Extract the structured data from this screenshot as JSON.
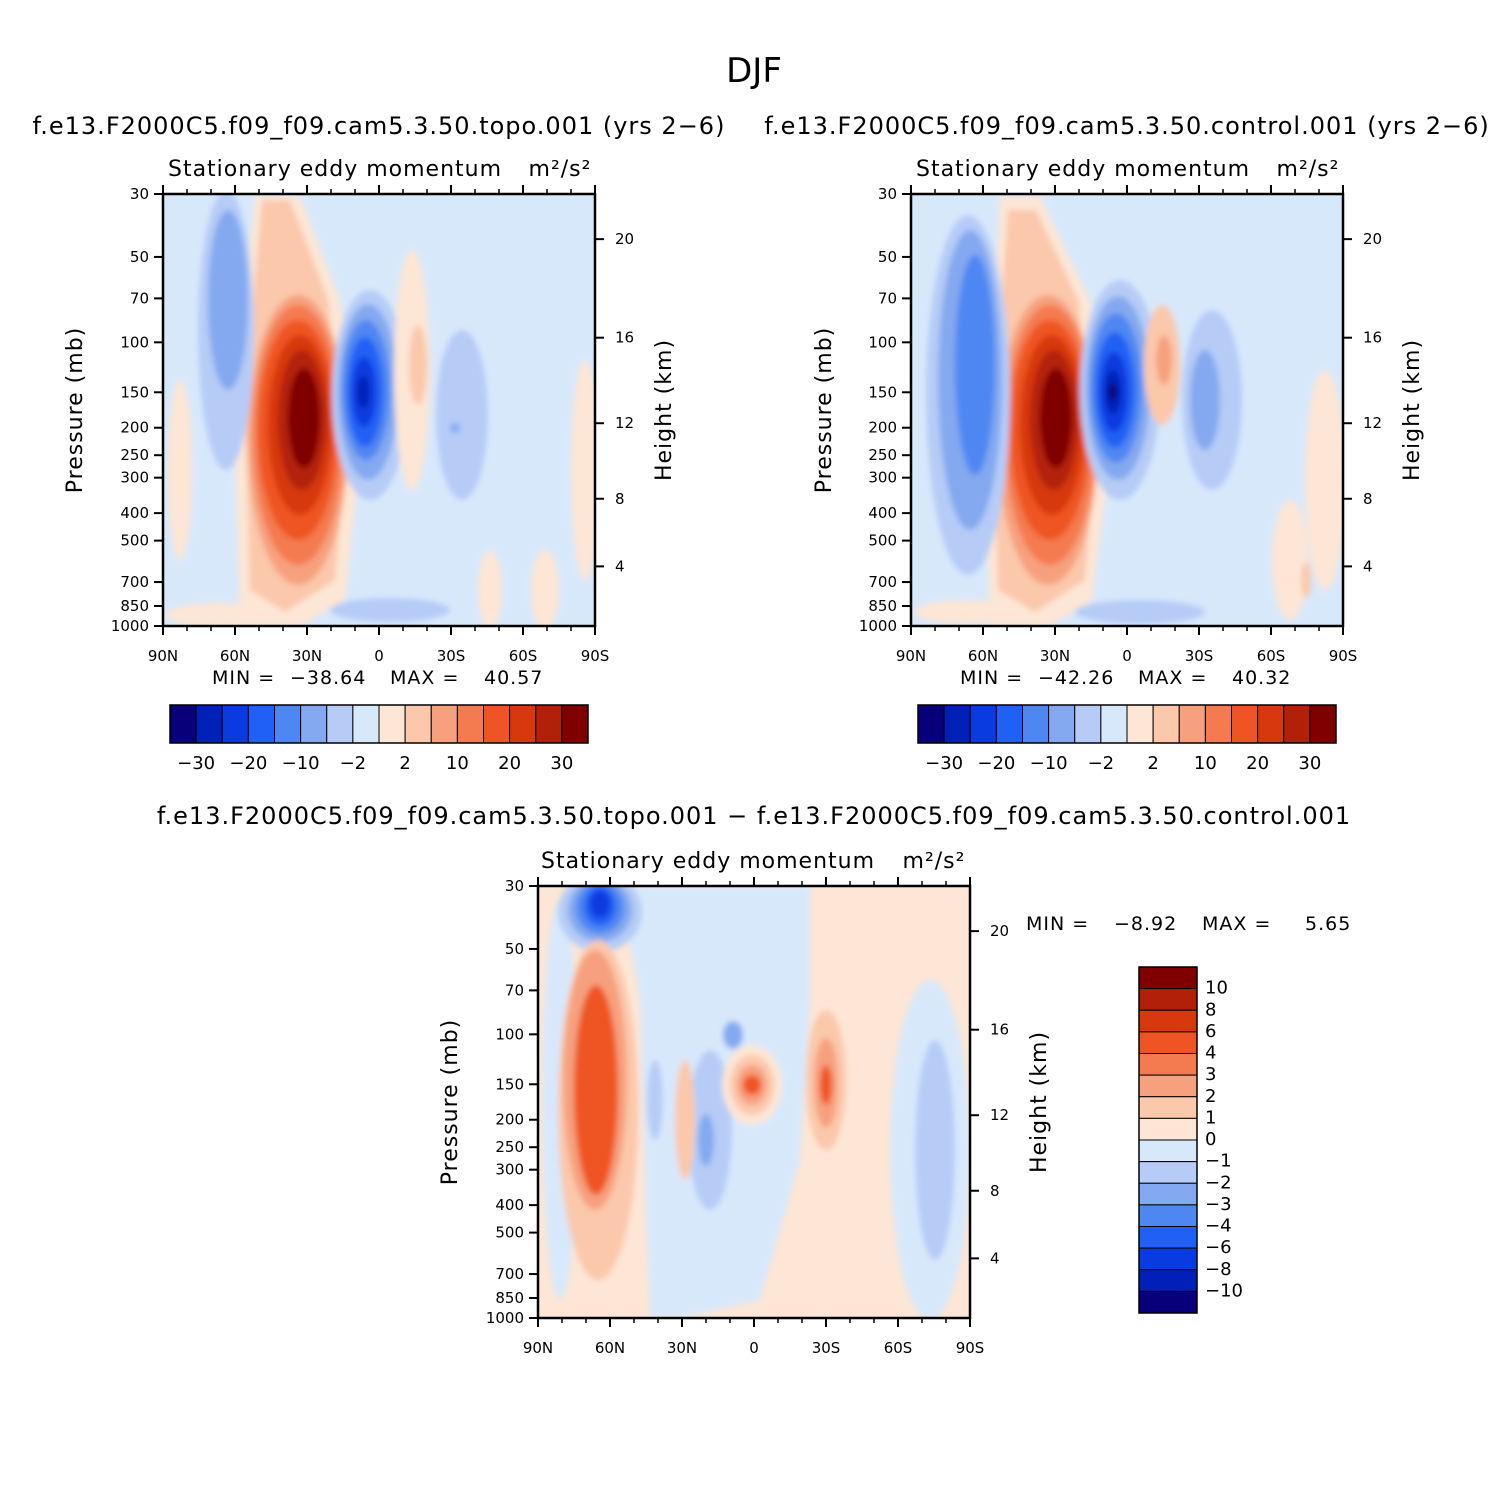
{
  "title": "DJF",
  "colors": {
    "panel_scale": [
      "#08007a",
      "#0020b8",
      "#0a3be0",
      "#2060f5",
      "#4f87f2",
      "#84a9f0",
      "#b6ccf7",
      "#d8e8fb",
      "#fde6d5",
      "#fbc8ac",
      "#f7a07e",
      "#f47a4f",
      "#ef5524",
      "#d7380e",
      "#b3200a",
      "#800000"
    ],
    "diff_scale": [
      "#08007a",
      "#0020b8",
      "#0a3be0",
      "#2060f5",
      "#4f87f2",
      "#84a9f0",
      "#b6ccf7",
      "#d8e8fb",
      "#fde6d5",
      "#fbc8ac",
      "#f7a07e",
      "#f47a4f",
      "#ef5524",
      "#d7380e",
      "#b3200a",
      "#800000"
    ]
  },
  "chart_data": [
    {
      "id": "topo",
      "type": "contour",
      "case_title": "f.e13.F2000C5.f09_f09.cam5.3.50.topo.001  (yrs 2-6)",
      "subtitle": "Stationary eddy momentum",
      "units": "m²/s²",
      "ylabel": "Pressure (mb)",
      "y2label": "Height (km)",
      "x_ticks": [
        "90N",
        "60N",
        "30N",
        "0",
        "30S",
        "60S",
        "90S"
      ],
      "x_values": [
        90,
        60,
        30,
        0,
        -30,
        -60,
        -90
      ],
      "y_ticks": [
        "30",
        "50",
        "70",
        "100",
        "150",
        "200",
        "250",
        "300",
        "400",
        "500",
        "700",
        "850",
        "1000"
      ],
      "y_values": [
        30,
        50,
        70,
        100,
        150,
        200,
        250,
        300,
        400,
        500,
        700,
        850,
        1000
      ],
      "height_ticks": [
        "20",
        "16",
        "12",
        "8",
        "4"
      ],
      "height_values": [
        20,
        16,
        12,
        8,
        4
      ],
      "min_label": "MIN =",
      "min_value": "-38.64",
      "max_label": "MAX =",
      "max_value": "40.57",
      "levels": [
        -30,
        -25,
        -20,
        -15,
        -10,
        -5,
        -2,
        0,
        2,
        5,
        10,
        15,
        20,
        25,
        30
      ],
      "colorbar_labels": [
        "-30",
        "-20",
        "-10",
        "-2",
        "2",
        "10",
        "20",
        "30"
      ],
      "features": [
        {
          "lat": 28,
          "p": 200,
          "value": 40.57
        },
        {
          "lat": -5,
          "p": 150,
          "value": -38.64
        },
        {
          "lat": 62,
          "p": 100,
          "value": -8
        },
        {
          "lat": -30,
          "p": 200,
          "value": -5
        },
        {
          "lat": -15,
          "p": 120,
          "value": 5
        }
      ]
    },
    {
      "id": "control",
      "type": "contour",
      "case_title": "f.e13.F2000C5.f09_f09.cam5.3.50.control.001  (yrs 2-6)",
      "subtitle": "Stationary eddy momentum",
      "units": "m²/s²",
      "ylabel": "Pressure (mb)",
      "y2label": "Height (km)",
      "x_ticks": [
        "90N",
        "60N",
        "30N",
        "0",
        "30S",
        "60S",
        "90S"
      ],
      "x_values": [
        90,
        60,
        30,
        0,
        -30,
        -60,
        -90
      ],
      "y_ticks": [
        "30",
        "50",
        "70",
        "100",
        "150",
        "200",
        "250",
        "300",
        "400",
        "500",
        "700",
        "850",
        "1000"
      ],
      "y_values": [
        30,
        50,
        70,
        100,
        150,
        200,
        250,
        300,
        400,
        500,
        700,
        850,
        1000
      ],
      "height_ticks": [
        "20",
        "16",
        "12",
        "8",
        "4"
      ],
      "height_values": [
        20,
        16,
        12,
        8,
        4
      ],
      "min_label": "MIN =",
      "min_value": "-42.26",
      "max_label": "MAX =",
      "max_value": "40.32",
      "levels": [
        -30,
        -25,
        -20,
        -15,
        -10,
        -5,
        -2,
        0,
        2,
        5,
        10,
        15,
        20,
        25,
        30
      ],
      "colorbar_labels": [
        "-30",
        "-20",
        "-10",
        "-2",
        "2",
        "10",
        "20",
        "30"
      ],
      "features": [
        {
          "lat": 30,
          "p": 200,
          "value": 40.32
        },
        {
          "lat": -5,
          "p": 150,
          "value": -42.26
        },
        {
          "lat": 62,
          "p": 120,
          "value": -15
        },
        {
          "lat": -30,
          "p": 180,
          "value": -8
        },
        {
          "lat": -15,
          "p": 120,
          "value": 5
        }
      ]
    },
    {
      "id": "difference",
      "type": "contour",
      "case_title": "f.e13.F2000C5.f09_f09.cam5.3.50.topo.001 - f.e13.F2000C5.f09_f09.cam5.3.50.control.001",
      "subtitle": "Stationary eddy momentum",
      "units": "m²/s²",
      "ylabel": "Pressure (mb)",
      "y2label": "Height (km)",
      "x_ticks": [
        "90N",
        "60N",
        "30N",
        "0",
        "30S",
        "60S",
        "90S"
      ],
      "x_values": [
        90,
        60,
        30,
        0,
        -30,
        -60,
        -90
      ],
      "y_ticks": [
        "30",
        "50",
        "70",
        "100",
        "150",
        "200",
        "250",
        "300",
        "400",
        "500",
        "700",
        "850",
        "1000"
      ],
      "y_values": [
        30,
        50,
        70,
        100,
        150,
        200,
        250,
        300,
        400,
        500,
        700,
        850,
        1000
      ],
      "height_ticks": [
        "20",
        "16",
        "12",
        "8",
        "4"
      ],
      "height_values": [
        20,
        16,
        12,
        8,
        4
      ],
      "min_label": "MIN =",
      "min_value": "-8.92",
      "max_label": "MAX =",
      "max_value": "5.65",
      "levels": [
        -10,
        -8,
        -6,
        -4,
        -3,
        -2,
        -1,
        0,
        1,
        2,
        3,
        4,
        6,
        8,
        10
      ],
      "colorbar_labels": [
        "10",
        "8",
        "6",
        "4",
        "3",
        "2",
        "1",
        "0",
        "-1",
        "-2",
        "-3",
        "-4",
        "-6",
        "-8",
        "-10"
      ],
      "features": [
        {
          "lat": 65,
          "p": 35,
          "value": -8.92
        },
        {
          "lat": 65,
          "p": 150,
          "value": 5.65
        },
        {
          "lat": 2,
          "p": 150,
          "value": 4
        },
        {
          "lat": -30,
          "p": 150,
          "value": 4
        },
        {
          "lat": 20,
          "p": 230,
          "value": -2
        }
      ]
    }
  ]
}
